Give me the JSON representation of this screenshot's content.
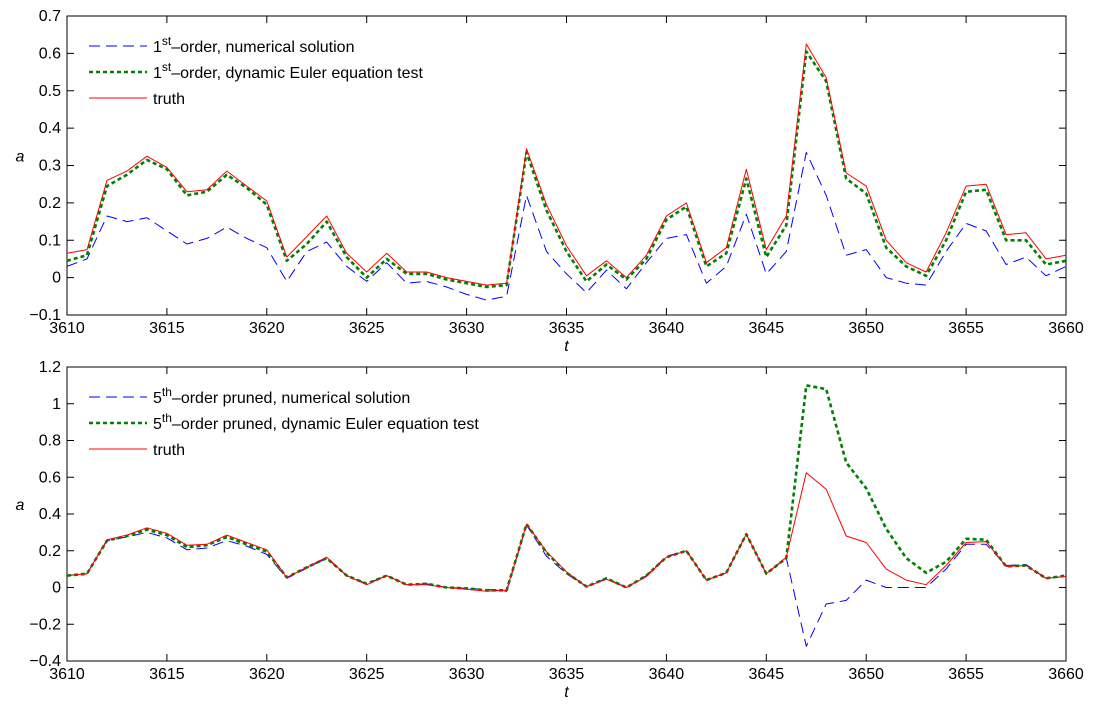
{
  "chart_data": [
    {
      "type": "line",
      "xlabel": "t",
      "ylabel": "a",
      "xlim": [
        3610,
        3660
      ],
      "ylim": [
        -0.1,
        0.7
      ],
      "xticks": [
        "3610",
        "3615",
        "3620",
        "3625",
        "3630",
        "3635",
        "3640",
        "3645",
        "3650",
        "3655",
        "3660"
      ],
      "yticks": [
        "0.7",
        "0.6",
        "0.5",
        "0.4",
        "0.3",
        "0.2",
        "0.1",
        "0",
        "−0.1"
      ],
      "grid": false,
      "legend_position": "top-left",
      "x": [
        3610,
        3611,
        3612,
        3613,
        3614,
        3615,
        3616,
        3617,
        3618,
        3619,
        3620,
        3621,
        3622,
        3623,
        3624,
        3625,
        3626,
        3627,
        3628,
        3629,
        3630,
        3631,
        3632,
        3633,
        3634,
        3635,
        3636,
        3637,
        3638,
        3639,
        3640,
        3641,
        3642,
        3643,
        3644,
        3645,
        3646,
        3647,
        3648,
        3649,
        3650,
        3651,
        3652,
        3653,
        3654,
        3655,
        3656,
        3657,
        3658,
        3659,
        3660
      ],
      "series": [
        {
          "legend_prefix": "1",
          "legend_sup": "st",
          "legend_suffix": "–order, numerical solution",
          "color": "#0000ff",
          "style": "dashed",
          "values": [
            0.03,
            0.05,
            0.165,
            0.15,
            0.16,
            0.125,
            0.09,
            0.105,
            0.135,
            0.105,
            0.08,
            -0.01,
            0.07,
            0.095,
            0.03,
            -0.01,
            0.04,
            -0.015,
            -0.01,
            -0.025,
            -0.045,
            -0.06,
            -0.05,
            0.22,
            0.07,
            0.01,
            -0.04,
            0.02,
            -0.03,
            0.04,
            0.105,
            0.115,
            -0.015,
            0.03,
            0.17,
            0.01,
            0.07,
            0.335,
            0.22,
            0.06,
            0.075,
            0.0,
            -0.015,
            -0.02,
            0.07,
            0.145,
            0.125,
            0.035,
            0.055,
            0.005,
            0.03
          ]
        },
        {
          "legend_prefix": "1",
          "legend_sup": "st",
          "legend_suffix": "–order, dynamic Euler equation test",
          "color": "#008000",
          "style": "dotted",
          "values": [
            0.045,
            0.06,
            0.245,
            0.275,
            0.315,
            0.29,
            0.22,
            0.23,
            0.275,
            0.24,
            0.195,
            0.045,
            0.09,
            0.15,
            0.055,
            0.0,
            0.05,
            0.01,
            0.01,
            -0.005,
            -0.015,
            -0.025,
            -0.02,
            0.335,
            0.18,
            0.07,
            -0.01,
            0.035,
            -0.005,
            0.05,
            0.155,
            0.19,
            0.03,
            0.065,
            0.265,
            0.055,
            0.14,
            0.605,
            0.525,
            0.265,
            0.225,
            0.08,
            0.03,
            0.005,
            0.1,
            0.23,
            0.235,
            0.1,
            0.1,
            0.035,
            0.045
          ]
        },
        {
          "legend_label": "truth",
          "color": "#ff0000",
          "style": "solid",
          "values": [
            0.065,
            0.075,
            0.26,
            0.285,
            0.325,
            0.295,
            0.23,
            0.235,
            0.285,
            0.245,
            0.205,
            0.055,
            0.11,
            0.165,
            0.065,
            0.015,
            0.065,
            0.015,
            0.015,
            0.0,
            -0.01,
            -0.02,
            -0.015,
            0.345,
            0.195,
            0.085,
            0.005,
            0.045,
            0.0,
            0.06,
            0.165,
            0.2,
            0.04,
            0.08,
            0.29,
            0.075,
            0.165,
            0.625,
            0.535,
            0.28,
            0.245,
            0.1,
            0.04,
            0.015,
            0.12,
            0.245,
            0.25,
            0.115,
            0.12,
            0.05,
            0.06
          ]
        }
      ]
    },
    {
      "type": "line",
      "xlabel": "t",
      "ylabel": "a",
      "xlim": [
        3610,
        3660
      ],
      "ylim": [
        -0.4,
        1.2
      ],
      "xticks": [
        "3610",
        "3615",
        "3620",
        "3625",
        "3630",
        "3635",
        "3640",
        "3645",
        "3650",
        "3655",
        "3660"
      ],
      "yticks": [
        "1.2",
        "1",
        "0.8",
        "0.6",
        "0.4",
        "0.2",
        "0",
        "−0.2",
        "−0.4"
      ],
      "grid": false,
      "legend_position": "top-left",
      "x": [
        3610,
        3611,
        3612,
        3613,
        3614,
        3615,
        3616,
        3617,
        3618,
        3619,
        3620,
        3621,
        3622,
        3623,
        3624,
        3625,
        3626,
        3627,
        3628,
        3629,
        3630,
        3631,
        3632,
        3633,
        3634,
        3635,
        3636,
        3637,
        3638,
        3639,
        3640,
        3641,
        3642,
        3643,
        3644,
        3645,
        3646,
        3647,
        3648,
        3649,
        3650,
        3651,
        3652,
        3653,
        3654,
        3655,
        3656,
        3657,
        3658,
        3659,
        3660
      ],
      "series": [
        {
          "legend_prefix": "5",
          "legend_sup": "th",
          "legend_suffix": "–order pruned, numerical solution",
          "color": "#0000ff",
          "style": "dashed",
          "values": [
            0.065,
            0.075,
            0.255,
            0.275,
            0.3,
            0.27,
            0.205,
            0.215,
            0.255,
            0.225,
            0.18,
            0.05,
            0.105,
            0.16,
            0.065,
            0.02,
            0.065,
            0.015,
            0.02,
            0.0,
            -0.005,
            -0.01,
            -0.02,
            0.34,
            0.17,
            0.075,
            0.005,
            0.05,
            0.0,
            0.065,
            0.17,
            0.2,
            0.04,
            0.08,
            0.29,
            0.075,
            0.16,
            -0.32,
            -0.09,
            -0.07,
            0.04,
            0.0,
            0.0,
            0.0,
            0.1,
            0.235,
            0.235,
            0.12,
            0.125,
            0.05,
            0.06
          ]
        },
        {
          "legend_prefix": "5",
          "legend_sup": "th",
          "legend_suffix": "–order pruned, dynamic Euler equation test",
          "color": "#008000",
          "style": "dotted",
          "values": [
            0.065,
            0.075,
            0.255,
            0.28,
            0.315,
            0.285,
            0.22,
            0.23,
            0.275,
            0.235,
            0.195,
            0.055,
            0.11,
            0.16,
            0.065,
            0.02,
            0.065,
            0.015,
            0.02,
            0.0,
            -0.005,
            -0.015,
            -0.015,
            0.345,
            0.19,
            0.08,
            0.005,
            0.05,
            0.0,
            0.065,
            0.165,
            0.2,
            0.04,
            0.08,
            0.29,
            0.075,
            0.16,
            1.1,
            1.08,
            0.68,
            0.54,
            0.32,
            0.16,
            0.08,
            0.14,
            0.265,
            0.26,
            0.115,
            0.12,
            0.05,
            0.065
          ]
        },
        {
          "legend_label": "truth",
          "color": "#ff0000",
          "style": "solid",
          "values": [
            0.065,
            0.075,
            0.26,
            0.285,
            0.325,
            0.295,
            0.23,
            0.235,
            0.285,
            0.245,
            0.205,
            0.055,
            0.11,
            0.165,
            0.065,
            0.015,
            0.065,
            0.015,
            0.015,
            0.0,
            -0.01,
            -0.02,
            -0.015,
            0.345,
            0.195,
            0.085,
            0.005,
            0.045,
            0.0,
            0.06,
            0.165,
            0.2,
            0.04,
            0.08,
            0.29,
            0.075,
            0.165,
            0.625,
            0.535,
            0.28,
            0.245,
            0.1,
            0.04,
            0.015,
            0.12,
            0.245,
            0.25,
            0.115,
            0.12,
            0.05,
            0.06
          ]
        }
      ]
    }
  ]
}
